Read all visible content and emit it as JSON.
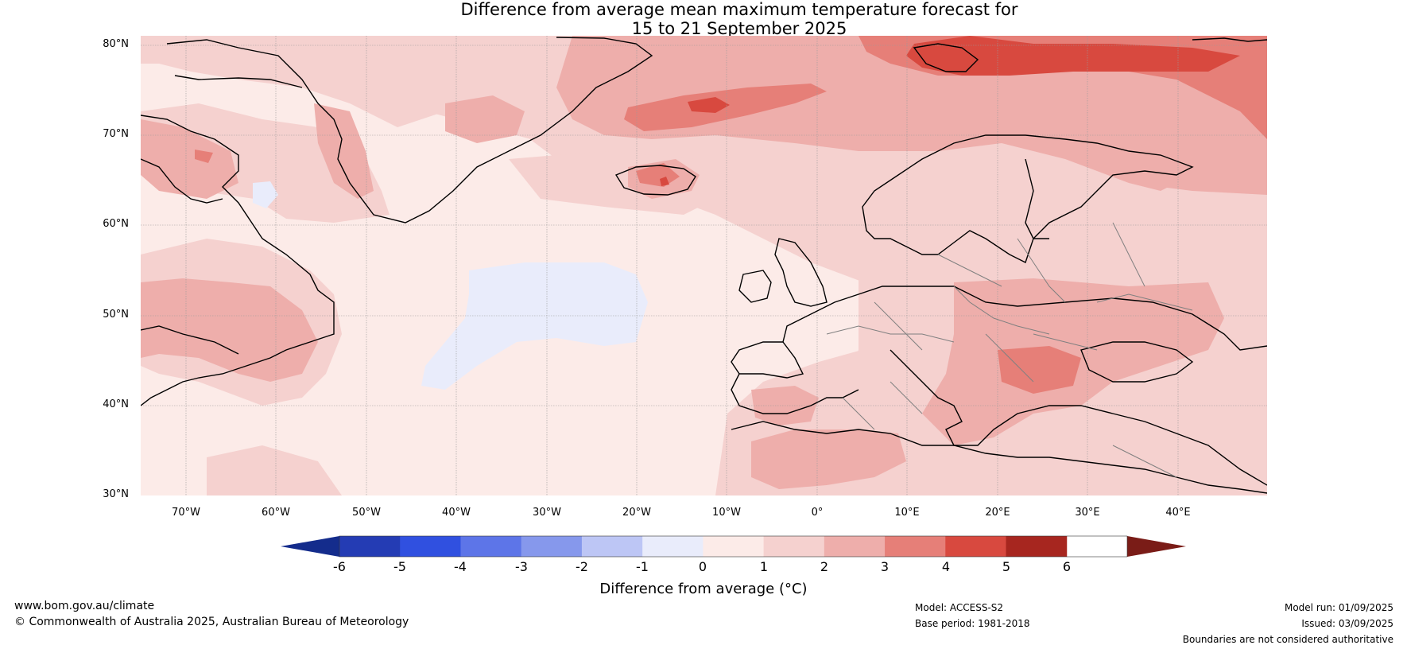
{
  "title": {
    "line1": "Difference from average mean maximum temperature forecast for",
    "line2": "15 to 21 September 2025"
  },
  "map": {
    "lat_labels": [
      "80°N",
      "70°N",
      "60°N",
      "50°N",
      "40°N",
      "30°N"
    ],
    "lon_labels": [
      "70°W",
      "60°W",
      "50°W",
      "40°W",
      "30°W",
      "20°W",
      "10°W",
      "0°",
      "10°E",
      "20°E",
      "30°E",
      "40°E"
    ],
    "extent": {
      "lon": [
        -75,
        50
      ],
      "lat": [
        30,
        81
      ]
    },
    "colors": {
      "c0_1": "#fcebe8",
      "c1_2": "#f5d1cf",
      "c2_3": "#eeaeab",
      "c3_4": "#e67f78",
      "c4_5": "#d8493f",
      "c5_6": "#a7261f",
      "cm1_0": "#e9ecfb",
      "land_border": "#000000",
      "country_border": "#808080"
    }
  },
  "colorbar": {
    "ticks": [
      "-6",
      "-5",
      "-4",
      "-3",
      "-2",
      "-1",
      "0",
      "1",
      "2",
      "3",
      "4",
      "5",
      "6"
    ],
    "colors": [
      "#142c8c",
      "#243cb4",
      "#3050e0",
      "#5d75e8",
      "#8698ec",
      "#bdc6f5",
      "#e9ecfb",
      "#fcebe8",
      "#f5d1cf",
      "#eeaeab",
      "#e67f78",
      "#d8493f",
      "#a7261f",
      "#7a1c17"
    ],
    "label": "Difference from average (°C)"
  },
  "footer": {
    "url": "www.bom.gov.au/climate",
    "copyright": "© Commonwealth of Australia 2025, Australian Bureau of Meteorology",
    "model": "Model: ACCESS-S2",
    "base_period": "Base period: 1981-2018",
    "model_run": "Model run: 01/09/2025",
    "issued": "Issued: 03/09/2025",
    "disclaimer": "Boundaries are not considered authoritative"
  }
}
